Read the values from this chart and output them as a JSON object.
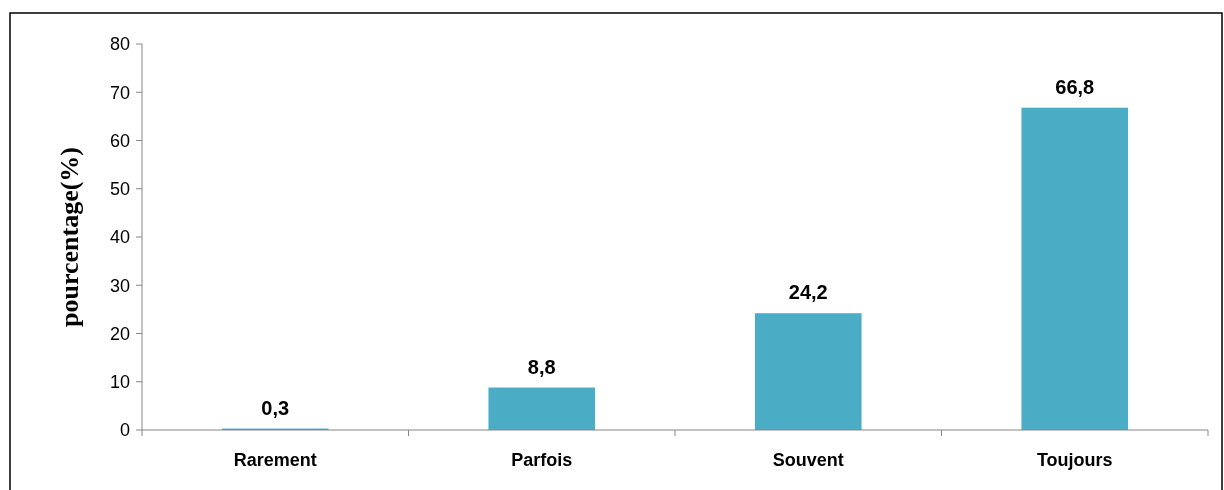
{
  "chart_data": {
    "type": "bar",
    "ylabel": "pourcentage(%)",
    "categories": [
      "Rarement",
      "Parfois",
      "Souvent",
      "Toujours"
    ],
    "values": [
      0.3,
      8.8,
      24.2,
      66.8
    ],
    "value_labels": [
      "0,3",
      "8,8",
      "24,2",
      "66,8"
    ],
    "color": "#4bacc6",
    "ylim": [
      0,
      80
    ],
    "yticks": [
      0,
      10,
      20,
      30,
      40,
      50,
      60,
      70,
      80
    ],
    "grid": false
  }
}
